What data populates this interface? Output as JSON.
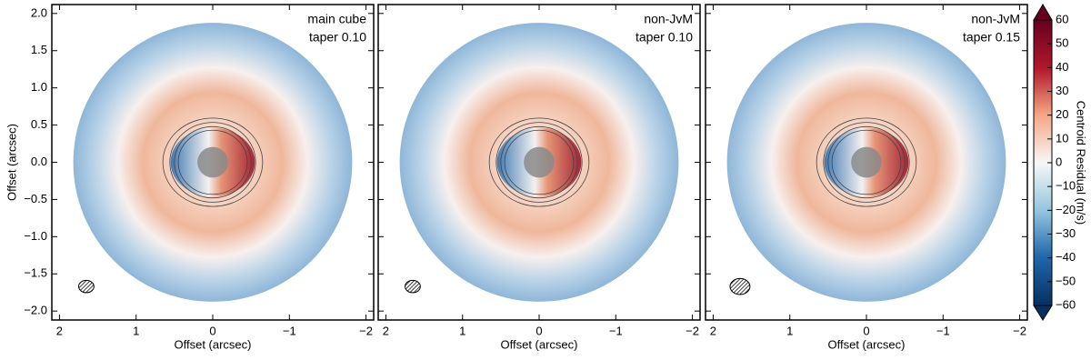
{
  "chart_data": [
    {
      "type": "heatmap",
      "annotation": [
        "main cube",
        "taper 0.10"
      ],
      "xlabel": "Offset (arcsec)",
      "ylabel": "Offset (arcsec)",
      "xlim": [
        2.1,
        -2.1
      ],
      "ylim": [
        -2.12,
        2.12
      ],
      "xticks": [
        2,
        1,
        0,
        {
          "value": -1,
          "label": "−1"
        },
        {
          "value": -2,
          "label": "−2"
        }
      ],
      "yticks": [
        {
          "value": -2,
          "label": "−2.0"
        },
        {
          "value": -1.5,
          "label": "−1.5"
        },
        {
          "value": -1,
          "label": "−1.0"
        },
        {
          "value": -0.5,
          "label": "−0.5"
        },
        {
          "value": 0,
          "label": "0.0"
        },
        {
          "value": 0.5,
          "label": "0.5"
        },
        {
          "value": 1,
          "label": "1.0"
        },
        {
          "value": 1.5,
          "label": "1.5"
        },
        {
          "value": 2,
          "label": "2.0"
        }
      ]
    },
    {
      "type": "heatmap",
      "annotation": [
        "non-JvM",
        "taper 0.10"
      ],
      "xlabel": "Offset (arcsec)",
      "xlim": [
        2.1,
        -2.1
      ],
      "ylim": [
        -2.12,
        2.12
      ],
      "xticks": [
        2,
        1,
        0,
        {
          "value": -1,
          "label": "−1"
        },
        {
          "value": -2,
          "label": "−2"
        }
      ],
      "yticks": [
        -2,
        -1.5,
        -1,
        -0.5,
        0,
        0.5,
        1,
        1.5,
        2
      ]
    },
    {
      "type": "heatmap",
      "annotation": [
        "non-JvM",
        "taper 0.15"
      ],
      "xlabel": "Offset (arcsec)",
      "xlim": [
        2.1,
        -2.1
      ],
      "ylim": [
        -2.12,
        2.12
      ],
      "xticks": [
        2,
        1,
        0,
        {
          "value": -1,
          "label": "−1"
        },
        {
          "value": -2,
          "label": "−2"
        }
      ],
      "yticks": [
        -2,
        -1.5,
        -1,
        -0.5,
        0,
        0.5,
        1,
        1.5,
        2
      ]
    }
  ],
  "colorbar": {
    "label": "Centroid Residual (m/s)",
    "lim": [
      -60,
      60
    ],
    "ticks": [
      {
        "value": -60,
        "label": "−60"
      },
      {
        "value": -50,
        "label": "−50"
      },
      {
        "value": -40,
        "label": "−40"
      },
      {
        "value": -30,
        "label": "−30"
      },
      {
        "value": -20,
        "label": "−20"
      },
      {
        "value": -10,
        "label": "−10"
      },
      0,
      10,
      20,
      30,
      40,
      50,
      60
    ]
  }
}
